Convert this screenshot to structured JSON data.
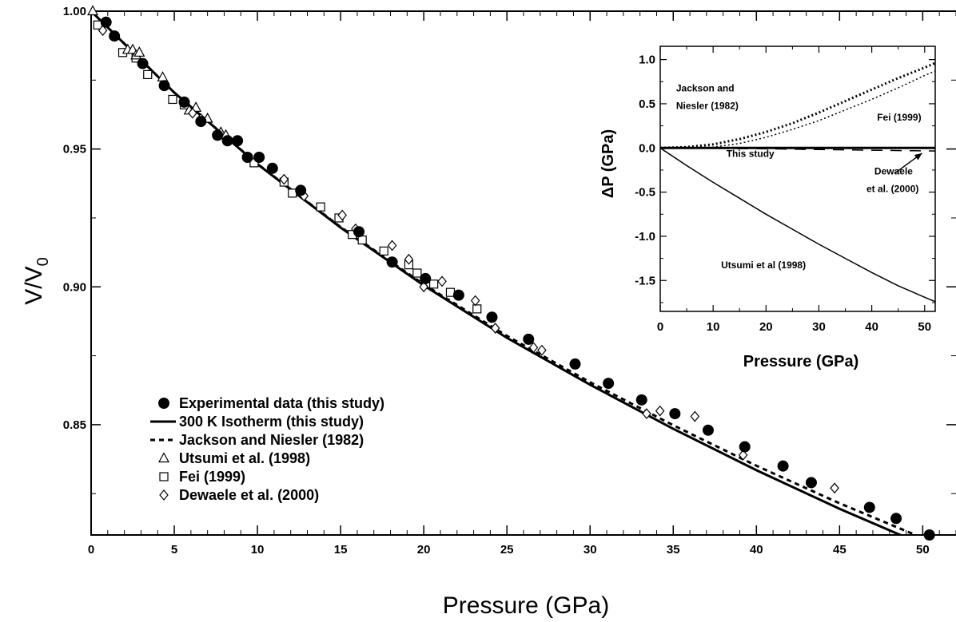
{
  "chart_data": [
    {
      "type": "scatter",
      "xlabel": "Pressure (GPa)",
      "ylabel": "V/V",
      "ylabel_subscript": "0",
      "xlim": [
        0,
        52
      ],
      "ylim": [
        0.81,
        1.0
      ],
      "x_ticks": [
        "0",
        "5",
        "10",
        "15",
        "20",
        "25",
        "30",
        "35",
        "40",
        "45",
        "50"
      ],
      "x_tick_values": [
        0,
        5,
        10,
        15,
        20,
        25,
        30,
        35,
        40,
        45,
        50
      ],
      "y_ticks": [
        "0.85",
        "0.90",
        "0.95",
        "1.00"
      ],
      "y_tick_values": [
        0.85,
        0.9,
        0.95,
        1.0
      ],
      "legend_position": "lower-left",
      "legend": [
        {
          "key": "exp",
          "marker": "filled-circle",
          "label": "Experimental data (this study)"
        },
        {
          "key": "iso",
          "marker": "solid-line",
          "label": "300 K Isotherm (this study)"
        },
        {
          "key": "jn",
          "marker": "dashed-line",
          "label": "Jackson and Niesler (1982)"
        },
        {
          "key": "ut",
          "marker": "open-triangle",
          "label": "Utsumi et al. (1998)"
        },
        {
          "key": "fei",
          "marker": "open-square",
          "label": "Fei (1999)"
        },
        {
          "key": "dew",
          "marker": "open-diamond",
          "label": "Dewaele et al. (2000)"
        }
      ],
      "series": [
        {
          "key": "exp",
          "name": "Experimental data (this study)",
          "points": [
            [
              0.9,
              0.996
            ],
            [
              1.4,
              0.991
            ],
            [
              3.1,
              0.981
            ],
            [
              4.4,
              0.973
            ],
            [
              5.6,
              0.967
            ],
            [
              6.6,
              0.96
            ],
            [
              7.6,
              0.955
            ],
            [
              8.2,
              0.953
            ],
            [
              8.8,
              0.953
            ],
            [
              9.4,
              0.947
            ],
            [
              10.1,
              0.947
            ],
            [
              10.9,
              0.943
            ],
            [
              12.6,
              0.935
            ],
            [
              16.1,
              0.92
            ],
            [
              18.1,
              0.909
            ],
            [
              20.1,
              0.903
            ],
            [
              22.1,
              0.897
            ],
            [
              24.1,
              0.889
            ],
            [
              26.3,
              0.881
            ],
            [
              29.1,
              0.872
            ],
            [
              31.1,
              0.865
            ],
            [
              33.1,
              0.859
            ],
            [
              35.1,
              0.854
            ],
            [
              37.1,
              0.848
            ],
            [
              39.3,
              0.842
            ],
            [
              41.6,
              0.835
            ],
            [
              43.3,
              0.829
            ],
            [
              46.8,
              0.82
            ],
            [
              48.4,
              0.816
            ],
            [
              50.4,
              0.81
            ]
          ]
        },
        {
          "key": "iso",
          "name": "300 K Isotherm (this study)",
          "points": [
            [
              0,
              1.0
            ],
            [
              5,
              0.9705
            ],
            [
              10,
              0.9445
            ],
            [
              15,
              0.9215
            ],
            [
              20,
              0.9005
            ],
            [
              25,
              0.8815
            ],
            [
              30,
              0.8645
            ],
            [
              35,
              0.8485
            ],
            [
              40,
              0.8335
            ],
            [
              45,
              0.8195
            ],
            [
              50,
              0.8065
            ],
            [
              52,
              0.8017
            ]
          ]
        },
        {
          "key": "jn",
          "name": "Jackson and Niesler (1982)",
          "points": [
            [
              0,
              1.0
            ],
            [
              5,
              0.9705
            ],
            [
              10,
              0.9446
            ],
            [
              15,
              0.9217
            ],
            [
              20,
              0.9009
            ],
            [
              25,
              0.8822
            ],
            [
              30,
              0.8654
            ],
            [
              35,
              0.8498
            ],
            [
              40,
              0.8351
            ],
            [
              45,
              0.8215
            ],
            [
              50,
              0.8089
            ],
            [
              52,
              0.8041
            ]
          ]
        },
        {
          "key": "ut",
          "name": "Utsumi et al. (1998)",
          "points": [
            [
              0.1,
              1.0
            ],
            [
              2.2,
              0.986
            ],
            [
              2.5,
              0.986
            ],
            [
              2.7,
              0.984
            ],
            [
              2.9,
              0.985
            ],
            [
              4.3,
              0.976
            ],
            [
              5.9,
              0.964
            ],
            [
              6.3,
              0.965
            ],
            [
              7.0,
              0.961
            ],
            [
              7.8,
              0.956
            ],
            [
              8.1,
              0.955
            ]
          ]
        },
        {
          "key": "fei",
          "name": "Fei (1999)",
          "points": [
            [
              0.4,
              0.995
            ],
            [
              1.9,
              0.985
            ],
            [
              2.7,
              0.983
            ],
            [
              3.4,
              0.977
            ],
            [
              4.9,
              0.968
            ],
            [
              5.6,
              0.966
            ],
            [
              9.8,
              0.945
            ],
            [
              11.6,
              0.938
            ],
            [
              12.1,
              0.934
            ],
            [
              13.8,
              0.929
            ],
            [
              14.9,
              0.925
            ],
            [
              15.7,
              0.919
            ],
            [
              16.3,
              0.917
            ],
            [
              17.6,
              0.913
            ],
            [
              19.1,
              0.908
            ],
            [
              19.6,
              0.905
            ],
            [
              20.6,
              0.901
            ],
            [
              21.6,
              0.898
            ],
            [
              23.2,
              0.892
            ]
          ]
        },
        {
          "key": "dew",
          "name": "Dewaele et al. (2000)",
          "points": [
            [
              0.7,
              0.993
            ],
            [
              6.1,
              0.963
            ],
            [
              6.6,
              0.961
            ],
            [
              11.6,
              0.939
            ],
            [
              12.8,
              0.933
            ],
            [
              15.1,
              0.926
            ],
            [
              15.9,
              0.921
            ],
            [
              18.1,
              0.915
            ],
            [
              19.1,
              0.91
            ],
            [
              20.0,
              0.9
            ],
            [
              21.1,
              0.902
            ],
            [
              23.1,
              0.895
            ],
            [
              24.3,
              0.885
            ],
            [
              26.6,
              0.878
            ],
            [
              27.1,
              0.877
            ],
            [
              33.4,
              0.854
            ],
            [
              34.2,
              0.855
            ],
            [
              36.3,
              0.853
            ],
            [
              39.2,
              0.839
            ],
            [
              44.7,
              0.827
            ]
          ]
        }
      ]
    },
    {
      "type": "line",
      "xlabel": "Pressure (GPa)",
      "ylabel": "ΔP (GPa)",
      "xlim": [
        0,
        52
      ],
      "ylim": [
        -1.85,
        1.15
      ],
      "x_ticks": [
        "0",
        "10",
        "20",
        "30",
        "40",
        "50"
      ],
      "x_tick_values": [
        0,
        10,
        20,
        30,
        40,
        50
      ],
      "y_ticks": [
        "1.0",
        "0.5",
        "0.0",
        "-0.5",
        "-1.0",
        "-1.5"
      ],
      "y_tick_values": [
        1.0,
        0.5,
        0.0,
        -0.5,
        -1.0,
        -1.5
      ],
      "annotations": [
        {
          "text": "Jackson and",
          "x": 3,
          "y": 0.64
        },
        {
          "text": "Niesler (1982)",
          "x": 3,
          "y": 0.44
        },
        {
          "text": "Fei (1999)",
          "x": 41,
          "y": 0.31
        },
        {
          "text": "This study",
          "x": 12.5,
          "y": -0.1
        },
        {
          "text": "Dewaele",
          "x": 40.5,
          "y": -0.3
        },
        {
          "text": "et al. (2000)",
          "x": 39,
          "y": -0.5
        },
        {
          "text": "Utsumi et al  (1998)",
          "x": 11.5,
          "y": -1.36
        }
      ],
      "series": [
        {
          "key": "this",
          "name": "This study",
          "style": "solid-bold",
          "points": [
            [
              0,
              0
            ],
            [
              52,
              0
            ]
          ]
        },
        {
          "key": "jn",
          "name": "Jackson and Niesler (1982)",
          "style": "dotted-bold",
          "points": [
            [
              0,
              0
            ],
            [
              5,
              0.01
            ],
            [
              10,
              0.04
            ],
            [
              15,
              0.1
            ],
            [
              20,
              0.18
            ],
            [
              25,
              0.28
            ],
            [
              30,
              0.4
            ],
            [
              35,
              0.53
            ],
            [
              40,
              0.66
            ],
            [
              45,
              0.79
            ],
            [
              50,
              0.91
            ],
            [
              52,
              0.96
            ]
          ]
        },
        {
          "key": "fei",
          "name": "Fei (1999)",
          "style": "dotted-fine",
          "points": [
            [
              0,
              0
            ],
            [
              10,
              0.01
            ],
            [
              15,
              0.05
            ],
            [
              20,
              0.12
            ],
            [
              25,
              0.21
            ],
            [
              30,
              0.31
            ],
            [
              35,
              0.43
            ],
            [
              40,
              0.55
            ],
            [
              45,
              0.68
            ],
            [
              50,
              0.82
            ],
            [
              52,
              0.87
            ]
          ]
        },
        {
          "key": "dew",
          "name": "Dewaele et al. (2000)",
          "style": "dashed",
          "points": [
            [
              0,
              0
            ],
            [
              10,
              -0.005
            ],
            [
              20,
              -0.01
            ],
            [
              30,
              -0.018
            ],
            [
              40,
              -0.026
            ],
            [
              52,
              -0.035
            ]
          ]
        },
        {
          "key": "ut",
          "name": "Utsumi et al (1998)",
          "style": "solid-thin",
          "points": [
            [
              0,
              0
            ],
            [
              5,
              -0.2
            ],
            [
              10,
              -0.39
            ],
            [
              15,
              -0.57
            ],
            [
              20,
              -0.75
            ],
            [
              25,
              -0.92
            ],
            [
              30,
              -1.09
            ],
            [
              35,
              -1.25
            ],
            [
              40,
              -1.41
            ],
            [
              45,
              -1.56
            ],
            [
              50,
              -1.69
            ],
            [
              52,
              -1.74
            ]
          ]
        }
      ]
    }
  ]
}
